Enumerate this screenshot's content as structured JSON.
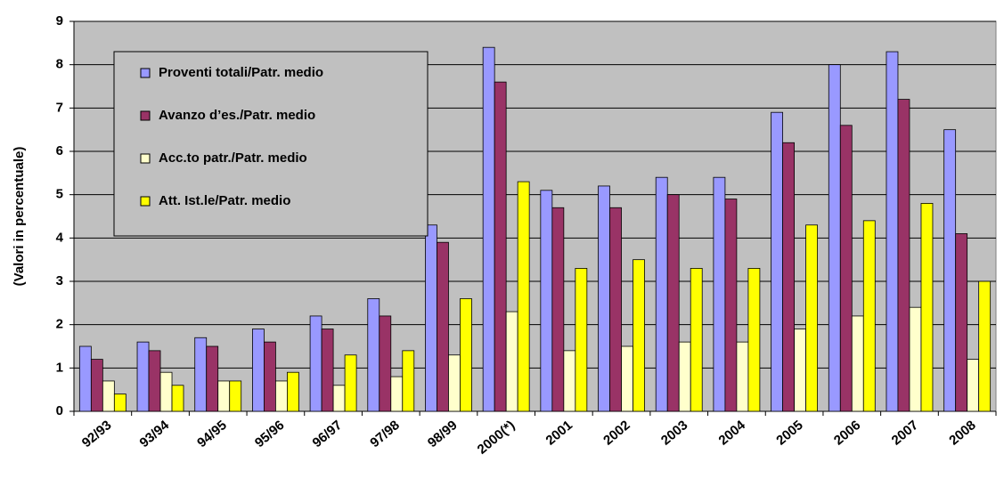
{
  "chart_data": {
    "type": "bar",
    "y_label": "(Valori in percentuale)",
    "categories": [
      "92/93",
      "93/94",
      "94/95",
      "95/96",
      "96/97",
      "97/98",
      "98/99",
      "2000(*)",
      "2001",
      "2002",
      "2003",
      "2004",
      "2005",
      "2006",
      "2007",
      "2008"
    ],
    "series": [
      {
        "name": "Proventi totali/Patr. medio",
        "color": "#9999ff",
        "values": [
          1.5,
          1.6,
          1.7,
          1.9,
          2.2,
          2.6,
          4.3,
          8.4,
          5.1,
          5.2,
          5.4,
          5.4,
          6.9,
          8.0,
          8.3,
          6.5
        ]
      },
      {
        "name": "Avanzo d’es./Patr. medio",
        "color": "#993366",
        "values": [
          1.2,
          1.4,
          1.5,
          1.6,
          1.9,
          2.2,
          3.9,
          7.6,
          4.7,
          4.7,
          5.0,
          4.9,
          6.2,
          6.6,
          7.2,
          4.1
        ]
      },
      {
        "name": "Acc.to patr./Patr. medio",
        "color": "#ffffcc",
        "values": [
          0.7,
          0.9,
          0.7,
          0.7,
          0.6,
          0.8,
          1.3,
          2.3,
          1.4,
          1.5,
          1.6,
          1.6,
          1.9,
          2.2,
          2.4,
          1.2
        ]
      },
      {
        "name": "Att. Ist.le/Patr. medio",
        "color": "#ffff00",
        "values": [
          0.4,
          0.6,
          0.7,
          0.9,
          1.3,
          1.4,
          2.6,
          5.3,
          3.3,
          3.5,
          3.3,
          3.3,
          4.3,
          4.4,
          4.8,
          3.0
        ]
      }
    ],
    "ylim": [
      0,
      9
    ],
    "yticks": [
      0,
      1,
      2,
      3,
      4,
      5,
      6,
      7,
      8,
      9
    ],
    "grid": true,
    "legend": "upper-left"
  }
}
